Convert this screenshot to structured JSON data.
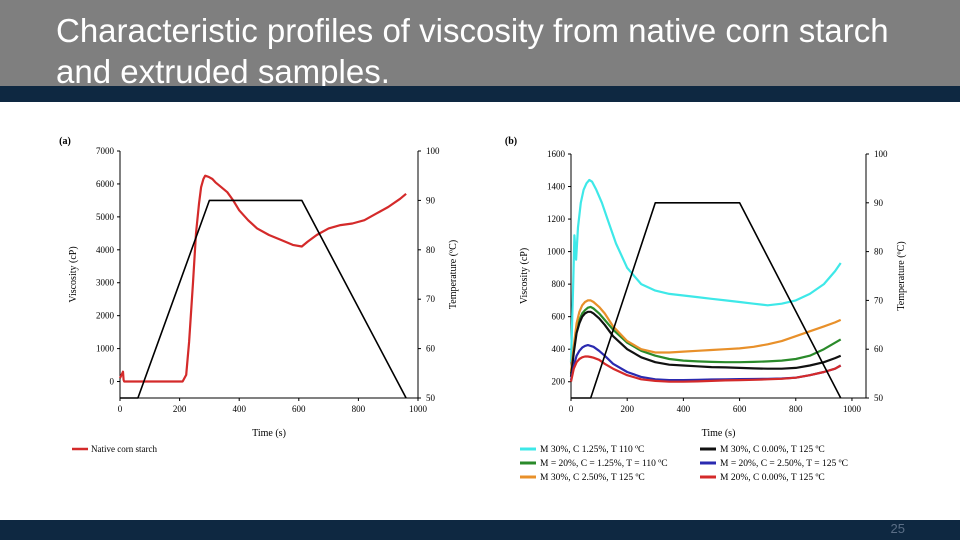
{
  "slide": {
    "title": "Characteristic profiles of viscosity from native corn starch and extruded samples.",
    "page_number": "25"
  },
  "colors": {
    "title_bg": "#7f7f7f",
    "accent_bar": "#0e2841"
  },
  "chart_data": [
    {
      "panel_label": "(a)",
      "type": "line",
      "xlabel": "Time (s)",
      "ylabel": "Viscosity (cP)",
      "y2label": "Temperature (ºC)",
      "xlim": [
        0,
        1000
      ],
      "ylim": [
        -500,
        7000
      ],
      "y2lim": [
        50,
        100
      ],
      "xticks": [
        0,
        200,
        400,
        600,
        800,
        1000
      ],
      "yticks": [
        0,
        1000,
        2000,
        3000,
        4000,
        5000,
        6000,
        7000
      ],
      "y2ticks": [
        50,
        60,
        70,
        80,
        90,
        100
      ],
      "legend": "bottom",
      "series": [
        {
          "name": "Native corn starch",
          "color": "#d42a2a",
          "axis": "left",
          "x": [
            0,
            10,
            12,
            14,
            20,
            60,
            120,
            180,
            210,
            222,
            232,
            245,
            255,
            265,
            272,
            280,
            286,
            293,
            300,
            310,
            320,
            340,
            360,
            380,
            400,
            430,
            460,
            500,
            540,
            580,
            610,
            630,
            660,
            700,
            740,
            780,
            820,
            860,
            900,
            940,
            960
          ],
          "y": [
            100,
            300,
            50,
            0,
            0,
            0,
            0,
            0,
            0,
            200,
            1200,
            3000,
            4500,
            5400,
            5900,
            6150,
            6250,
            6230,
            6200,
            6150,
            6050,
            5900,
            5750,
            5500,
            5200,
            4900,
            4650,
            4450,
            4300,
            4150,
            4100,
            4250,
            4450,
            4650,
            4750,
            4800,
            4900,
            5100,
            5300,
            5550,
            5700
          ]
        },
        {
          "name": "Temperature",
          "color": "#000000",
          "axis": "right",
          "x": [
            0,
            60,
            300,
            610,
            960
          ],
          "y": [
            50,
            50,
            90,
            90,
            50
          ]
        }
      ]
    },
    {
      "panel_label": "(b)",
      "type": "line",
      "xlabel": "Time (s)",
      "ylabel": "Viscosity (cP)",
      "y2label": "Temperature (ºC)",
      "xlim": [
        0,
        1050
      ],
      "ylim": [
        100,
        1600
      ],
      "y2lim": [
        50,
        100
      ],
      "xticks": [
        0,
        200,
        400,
        600,
        800,
        1000
      ],
      "yticks": [
        200,
        400,
        600,
        800,
        1000,
        1200,
        1400,
        1600
      ],
      "y2ticks": [
        50,
        60,
        70,
        80,
        90,
        100
      ],
      "legend": "bottom",
      "series": [
        {
          "name": "M 30%, C 1.25%, T 110 ºC",
          "color": "#3ee8e8",
          "axis": "left",
          "x": [
            0,
            8,
            12,
            18,
            25,
            35,
            45,
            55,
            65,
            75,
            90,
            110,
            130,
            160,
            200,
            250,
            300,
            350,
            400,
            450,
            500,
            550,
            600,
            650,
            700,
            750,
            800,
            850,
            900,
            940,
            960
          ],
          "y": [
            320,
            800,
            1100,
            950,
            1150,
            1300,
            1380,
            1420,
            1440,
            1430,
            1380,
            1300,
            1200,
            1050,
            900,
            800,
            760,
            740,
            730,
            720,
            710,
            700,
            690,
            680,
            670,
            680,
            700,
            740,
            800,
            880,
            930
          ]
        },
        {
          "name": "M = 20%, C = 1.25%, T = 110 ºC",
          "color": "#2a8a2a",
          "axis": "left",
          "x": [
            0,
            10,
            20,
            30,
            40,
            50,
            60,
            70,
            80,
            100,
            120,
            150,
            200,
            250,
            300,
            350,
            400,
            450,
            500,
            550,
            600,
            650,
            700,
            750,
            800,
            850,
            900,
            940,
            960
          ],
          "y": [
            250,
            400,
            520,
            580,
            620,
            640,
            655,
            660,
            650,
            620,
            580,
            520,
            440,
            390,
            360,
            340,
            330,
            325,
            322,
            320,
            320,
            322,
            325,
            330,
            340,
            360,
            400,
            440,
            460
          ]
        },
        {
          "name": "M 30%, C 2.50%, T 125 ºC",
          "color": "#e8902a",
          "axis": "left",
          "x": [
            0,
            10,
            20,
            30,
            40,
            50,
            60,
            70,
            80,
            100,
            120,
            150,
            200,
            250,
            300,
            350,
            400,
            450,
            500,
            550,
            600,
            650,
            700,
            750,
            800,
            850,
            900,
            940,
            960
          ],
          "y": [
            260,
            420,
            560,
            630,
            670,
            690,
            700,
            700,
            690,
            660,
            620,
            540,
            450,
            400,
            380,
            380,
            385,
            390,
            395,
            400,
            405,
            415,
            430,
            450,
            480,
            510,
            540,
            565,
            580
          ]
        },
        {
          "name": "M 30%, C 0.00%, T 125 ºC",
          "color": "#111111",
          "axis": "left",
          "x": [
            0,
            10,
            20,
            30,
            40,
            50,
            60,
            70,
            80,
            100,
            120,
            150,
            200,
            250,
            300,
            350,
            400,
            450,
            500,
            550,
            600,
            650,
            700,
            750,
            800,
            850,
            900,
            940,
            960
          ],
          "y": [
            230,
            380,
            500,
            560,
            600,
            620,
            630,
            630,
            620,
            590,
            550,
            480,
            400,
            350,
            320,
            305,
            300,
            295,
            290,
            288,
            285,
            282,
            280,
            280,
            285,
            300,
            320,
            345,
            360
          ]
        },
        {
          "name": "M = 20%, C = 2.50%, T = 125 ºC",
          "color": "#2a2ab0",
          "axis": "left",
          "x": [
            0,
            10,
            20,
            30,
            40,
            50,
            60,
            70,
            80,
            100,
            120,
            150,
            200,
            250,
            300,
            350,
            400,
            450,
            500,
            550,
            600,
            650,
            700,
            750,
            800,
            850,
            900,
            940,
            960
          ],
          "y": [
            210,
            300,
            360,
            390,
            410,
            420,
            425,
            420,
            415,
            390,
            360,
            310,
            260,
            230,
            215,
            210,
            210,
            212,
            214,
            215,
            216,
            217,
            218,
            220,
            225,
            240,
            260,
            280,
            300
          ]
        },
        {
          "name": "M 20%, C 0.00%, T 125 ºC",
          "color": "#d42a2a",
          "axis": "left",
          "x": [
            0,
            10,
            20,
            30,
            40,
            50,
            60,
            70,
            80,
            100,
            120,
            150,
            200,
            250,
            300,
            350,
            400,
            450,
            500,
            550,
            600,
            650,
            700,
            750,
            800,
            850,
            900,
            940,
            960
          ],
          "y": [
            200,
            280,
            320,
            340,
            350,
            355,
            355,
            352,
            348,
            335,
            310,
            280,
            240,
            215,
            205,
            200,
            200,
            202,
            205,
            208,
            210,
            212,
            215,
            218,
            225,
            240,
            260,
            280,
            300
          ]
        },
        {
          "name": "Temperature",
          "color": "#000000",
          "axis": "right",
          "x": [
            0,
            70,
            300,
            600,
            960
          ],
          "y": [
            50,
            50,
            90,
            90,
            50
          ]
        }
      ],
      "legend_entries": [
        {
          "label": "M  30%, C  1.25%, T  110 ºC",
          "color": "#3ee8e8"
        },
        {
          "label": "M  30%, C  0.00%, T  125 ºC",
          "color": "#111111"
        },
        {
          "label": "M = 20%, C = 1.25%, T = 110 ºC",
          "color": "#2a8a2a"
        },
        {
          "label": "M = 20%, C = 2.50%, T = 125 ºC",
          "color": "#2a2ab0"
        },
        {
          "label": "M  30%, C  2.50%, T  125 ºC",
          "color": "#e8902a"
        },
        {
          "label": "M  20%, C  0.00%, T  125 ºC",
          "color": "#d42a2a"
        }
      ]
    }
  ]
}
